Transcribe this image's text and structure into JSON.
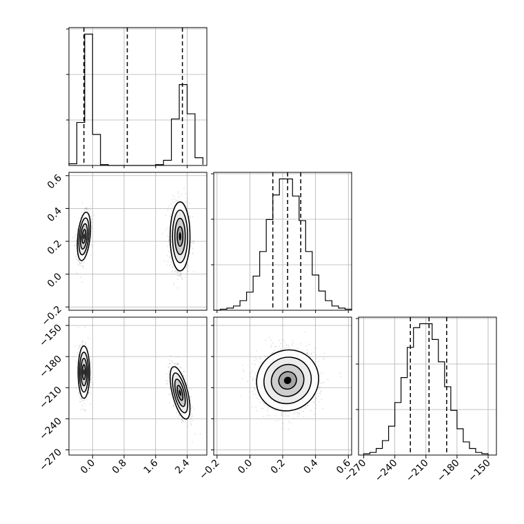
{
  "chart_data": {
    "type": "corner",
    "params": [
      {
        "id": "p1",
        "range": [
          -0.6,
          2.9
        ],
        "ticks": [
          0.0,
          0.8,
          1.6,
          2.4
        ],
        "tick_labels": [
          "0.0",
          "0.8",
          "1.6",
          "2.4"
        ],
        "quantiles": [
          -0.22,
          0.88,
          2.28
        ],
        "hist_edges": [
          -0.6,
          -0.4,
          -0.2,
          0.0,
          0.2,
          0.4,
          0.6,
          0.8,
          1.0,
          1.2,
          1.4,
          1.6,
          1.8,
          2.0,
          2.2,
          2.4,
          2.6,
          2.8
        ],
        "hist_counts": [
          0.04,
          1.0,
          3.05,
          0.72,
          0.02,
          0,
          0,
          0,
          0,
          0,
          0,
          0.02,
          0.12,
          1.08,
          1.88,
          1.2,
          0.18,
          0.02
        ]
      },
      {
        "id": "p2",
        "range": [
          -0.22,
          0.62
        ],
        "ticks": [
          -0.2,
          0.0,
          0.2,
          0.4,
          0.6
        ],
        "tick_labels": [
          "−0.2",
          "0.0",
          "0.2",
          "0.4",
          "0.6"
        ],
        "quantiles": [
          0.14,
          0.23,
          0.31
        ],
        "hist_edges": [
          -0.22,
          -0.18,
          -0.14,
          -0.1,
          -0.06,
          -0.02,
          0.02,
          0.06,
          0.1,
          0.14,
          0.18,
          0.22,
          0.26,
          0.3,
          0.34,
          0.38,
          0.42,
          0.46,
          0.5,
          0.54,
          0.58,
          0.62
        ],
        "hist_counts": [
          0,
          0.01,
          0.02,
          0.04,
          0.09,
          0.17,
          0.32,
          0.55,
          0.85,
          1.08,
          1.23,
          1.23,
          1.07,
          0.84,
          0.55,
          0.33,
          0.18,
          0.09,
          0.04,
          0.02,
          0.01
        ]
      },
      {
        "id": "p3",
        "range": [
          -275,
          -142
        ],
        "ticks": [
          -270,
          -240,
          -210,
          -180,
          -150
        ],
        "tick_labels": [
          "−270",
          "−240",
          "−210",
          "−180",
          "−150"
        ],
        "quantiles": [
          -225,
          -207,
          -190
        ],
        "hist_edges": [
          -270,
          -264,
          -258,
          -252,
          -246,
          -240,
          -234,
          -228,
          -222,
          -216,
          -210,
          -204,
          -198,
          -192,
          -186,
          -180,
          -174,
          -168,
          -162,
          -156,
          -150
        ],
        "hist_counts": [
          0.01,
          0.02,
          0.05,
          0.11,
          0.22,
          0.4,
          0.59,
          0.82,
          0.97,
          1.0,
          1.0,
          0.88,
          0.71,
          0.52,
          0.34,
          0.2,
          0.1,
          0.05,
          0.02,
          0.01
        ]
      }
    ],
    "x_tick_labels_rows": [
      [
        "0.0",
        "0.8",
        "1.6",
        "2.4"
      ],
      [
        "−0.2",
        "0.0",
        "0.2",
        "0.4",
        "0.6"
      ],
      [
        "−270",
        "−240",
        "−210",
        "−180",
        "−150"
      ]
    ],
    "y_tick_labels_rows": [
      [
        "−0.2",
        "0.0",
        "0.2",
        "0.4",
        "0.6"
      ],
      [
        "−270",
        "−240",
        "−210",
        "−180",
        "−150"
      ]
    ],
    "clusters": {
      "p1_p2": [
        {
          "mx": -0.22,
          "my": 0.23,
          "sx": 0.08,
          "sy": 0.07,
          "rho": 0.35,
          "w": 0.5
        },
        {
          "mx": 2.22,
          "my": 0.23,
          "sx": 0.12,
          "sy": 0.1,
          "rho": 0.0,
          "w": 0.5
        }
      ],
      "p1_p3": [
        {
          "mx": -0.22,
          "my": -195,
          "sx": 0.07,
          "sy": 12,
          "rho": 0.0,
          "w": 0.5
        },
        {
          "mx": 2.22,
          "my": -215,
          "sx": 0.12,
          "sy": 12,
          "rho": -0.6,
          "w": 0.5
        }
      ],
      "p2_p3": [
        {
          "mx": 0.23,
          "my": -203,
          "sx": 0.09,
          "sy": 14,
          "rho": 0.05,
          "w": 1.0
        }
      ]
    }
  }
}
